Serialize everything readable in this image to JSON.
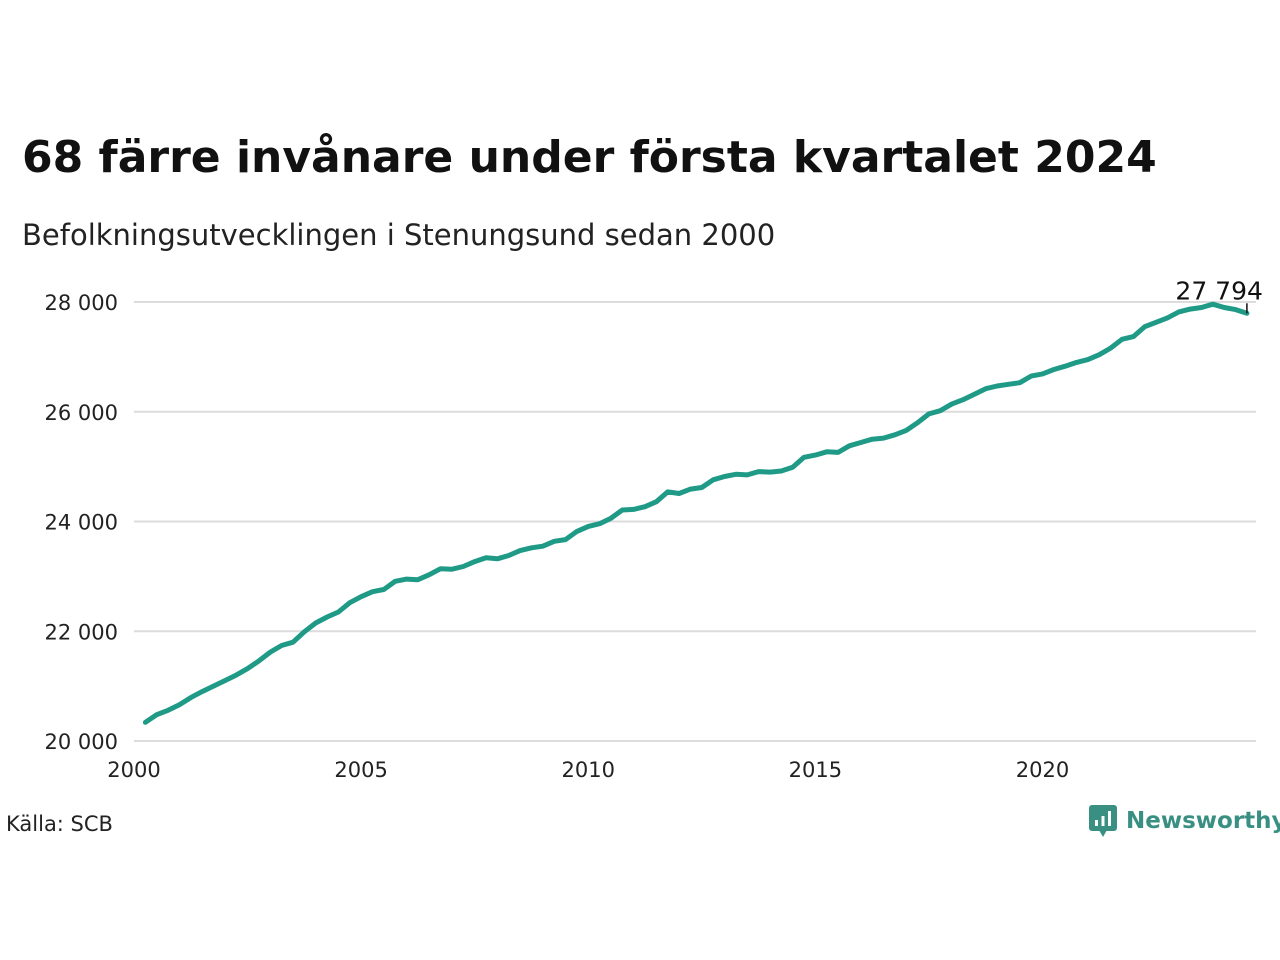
{
  "header": {
    "title": "68 färre invånare under första kvartalet 2024",
    "subtitle": "Befolkningsutvecklingen i Stenungsund sedan 2000"
  },
  "footer": {
    "source": "Källa: SCB",
    "brand": "Newsworthy",
    "brand_icon": "bar-chart-speech-bubble-icon"
  },
  "colors": {
    "line": "#1f9a86",
    "grid": "#dcdcdc",
    "brand": "#3a8f83",
    "text": "#111111"
  },
  "chart_data": {
    "type": "line",
    "title": "68 färre invånare under första kvartalet 2024",
    "subtitle": "Befolkningsutvecklingen i Stenungsund sedan 2000",
    "xlabel": "",
    "ylabel": "",
    "xlim": [
      2000,
      2024.7
    ],
    "ylim": [
      20000,
      28000
    ],
    "x_ticks": [
      2000,
      2005,
      2010,
      2015,
      2020
    ],
    "x_tick_labels": [
      "2000",
      "2005",
      "2010",
      "2015",
      "2020"
    ],
    "y_ticks": [
      20000,
      22000,
      24000,
      26000,
      28000
    ],
    "y_tick_labels": [
      "20 000",
      "22 000",
      "24 000",
      "26 000",
      "28 000"
    ],
    "grid": "horizontal",
    "legend": "none",
    "last_value_label": "27 794",
    "series": [
      {
        "values": [
          {
            "x": 2000.25,
            "y": 20340
          },
          {
            "x": 2000.5,
            "y": 20480
          },
          {
            "x": 2000.75,
            "y": 20560
          },
          {
            "x": 2001.0,
            "y": 20660
          },
          {
            "x": 2001.25,
            "y": 20790
          },
          {
            "x": 2001.5,
            "y": 20900
          },
          {
            "x": 2001.75,
            "y": 21000
          },
          {
            "x": 2002.0,
            "y": 21100
          },
          {
            "x": 2002.25,
            "y": 21200
          },
          {
            "x": 2002.5,
            "y": 21320
          },
          {
            "x": 2002.75,
            "y": 21460
          },
          {
            "x": 2003.0,
            "y": 21620
          },
          {
            "x": 2003.25,
            "y": 21740
          },
          {
            "x": 2003.5,
            "y": 21800
          },
          {
            "x": 2003.75,
            "y": 21990
          },
          {
            "x": 2004.0,
            "y": 22150
          },
          {
            "x": 2004.25,
            "y": 22260
          },
          {
            "x": 2004.5,
            "y": 22350
          },
          {
            "x": 2004.75,
            "y": 22520
          },
          {
            "x": 2005.0,
            "y": 22630
          },
          {
            "x": 2005.25,
            "y": 22720
          },
          {
            "x": 2005.5,
            "y": 22760
          },
          {
            "x": 2005.75,
            "y": 22910
          },
          {
            "x": 2006.0,
            "y": 22950
          },
          {
            "x": 2006.25,
            "y": 22940
          },
          {
            "x": 2006.5,
            "y": 23030
          },
          {
            "x": 2006.75,
            "y": 23140
          },
          {
            "x": 2007.0,
            "y": 23130
          },
          {
            "x": 2007.25,
            "y": 23180
          },
          {
            "x": 2007.5,
            "y": 23270
          },
          {
            "x": 2007.75,
            "y": 23340
          },
          {
            "x": 2008.0,
            "y": 23320
          },
          {
            "x": 2008.25,
            "y": 23380
          },
          {
            "x": 2008.5,
            "y": 23470
          },
          {
            "x": 2008.75,
            "y": 23520
          },
          {
            "x": 2009.0,
            "y": 23550
          },
          {
            "x": 2009.25,
            "y": 23640
          },
          {
            "x": 2009.5,
            "y": 23670
          },
          {
            "x": 2009.75,
            "y": 23820
          },
          {
            "x": 2010.0,
            "y": 23910
          },
          {
            "x": 2010.25,
            "y": 23960
          },
          {
            "x": 2010.5,
            "y": 24060
          },
          {
            "x": 2010.75,
            "y": 24210
          },
          {
            "x": 2011.0,
            "y": 24220
          },
          {
            "x": 2011.25,
            "y": 24270
          },
          {
            "x": 2011.5,
            "y": 24360
          },
          {
            "x": 2011.75,
            "y": 24540
          },
          {
            "x": 2012.0,
            "y": 24510
          },
          {
            "x": 2012.25,
            "y": 24590
          },
          {
            "x": 2012.5,
            "y": 24620
          },
          {
            "x": 2012.75,
            "y": 24760
          },
          {
            "x": 2013.0,
            "y": 24820
          },
          {
            "x": 2013.25,
            "y": 24860
          },
          {
            "x": 2013.5,
            "y": 24850
          },
          {
            "x": 2013.75,
            "y": 24910
          },
          {
            "x": 2014.0,
            "y": 24900
          },
          {
            "x": 2014.25,
            "y": 24920
          },
          {
            "x": 2014.5,
            "y": 24990
          },
          {
            "x": 2014.75,
            "y": 25170
          },
          {
            "x": 2015.0,
            "y": 25210
          },
          {
            "x": 2015.25,
            "y": 25270
          },
          {
            "x": 2015.5,
            "y": 25260
          },
          {
            "x": 2015.75,
            "y": 25380
          },
          {
            "x": 2016.0,
            "y": 25440
          },
          {
            "x": 2016.25,
            "y": 25500
          },
          {
            "x": 2016.5,
            "y": 25520
          },
          {
            "x": 2016.75,
            "y": 25580
          },
          {
            "x": 2017.0,
            "y": 25660
          },
          {
            "x": 2017.25,
            "y": 25800
          },
          {
            "x": 2017.5,
            "y": 25960
          },
          {
            "x": 2017.75,
            "y": 26020
          },
          {
            "x": 2018.0,
            "y": 26140
          },
          {
            "x": 2018.25,
            "y": 26220
          },
          {
            "x": 2018.5,
            "y": 26320
          },
          {
            "x": 2018.75,
            "y": 26420
          },
          {
            "x": 2019.0,
            "y": 26470
          },
          {
            "x": 2019.25,
            "y": 26500
          },
          {
            "x": 2019.5,
            "y": 26530
          },
          {
            "x": 2019.75,
            "y": 26650
          },
          {
            "x": 2020.0,
            "y": 26690
          },
          {
            "x": 2020.25,
            "y": 26770
          },
          {
            "x": 2020.5,
            "y": 26830
          },
          {
            "x": 2020.75,
            "y": 26900
          },
          {
            "x": 2021.0,
            "y": 26950
          },
          {
            "x": 2021.25,
            "y": 27040
          },
          {
            "x": 2021.5,
            "y": 27160
          },
          {
            "x": 2021.75,
            "y": 27320
          },
          {
            "x": 2022.0,
            "y": 27370
          },
          {
            "x": 2022.25,
            "y": 27550
          },
          {
            "x": 2022.5,
            "y": 27630
          },
          {
            "x": 2022.75,
            "y": 27710
          },
          {
            "x": 2023.0,
            "y": 27820
          },
          {
            "x": 2023.25,
            "y": 27870
          },
          {
            "x": 2023.5,
            "y": 27900
          },
          {
            "x": 2023.75,
            "y": 27960
          },
          {
            "x": 2024.0,
            "y": 27900
          },
          {
            "x": 2024.25,
            "y": 27862
          },
          {
            "x": 2024.5,
            "y": 27794
          }
        ]
      }
    ]
  }
}
